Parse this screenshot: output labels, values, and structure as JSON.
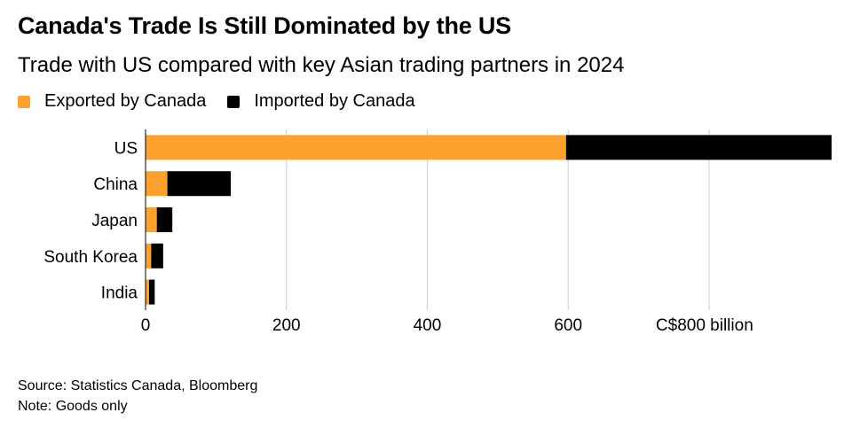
{
  "title": "Canada's Trade Is Still Dominated by the US",
  "subtitle": "Trade with US compared with key Asian trading partners in 2024",
  "legend": [
    {
      "label": "Exported by Canada",
      "color": "#FAA12E"
    },
    {
      "label": "Imported by Canada",
      "color": "#000000"
    }
  ],
  "source": "Source: Statistics Canada, Bloomberg",
  "note": "Note: Goods only",
  "chart_data": {
    "type": "bar",
    "orientation": "horizontal",
    "stacked": true,
    "categories": [
      "US",
      "China",
      "Japan",
      "South Korea",
      "India"
    ],
    "series": [
      {
        "name": "Exported by Canada",
        "color": "#FAA12E",
        "values": [
          597,
          31,
          16,
          8,
          5
        ]
      },
      {
        "name": "Imported by Canada",
        "color": "#000000",
        "values": [
          377,
          90,
          22,
          17,
          8
        ]
      }
    ],
    "xlim": [
      0,
      974
    ],
    "xticks": [
      0,
      200,
      400,
      600,
      800
    ],
    "xtick_labels": [
      "0",
      "200",
      "400",
      "600",
      "C$800 billion"
    ],
    "grid": true
  }
}
